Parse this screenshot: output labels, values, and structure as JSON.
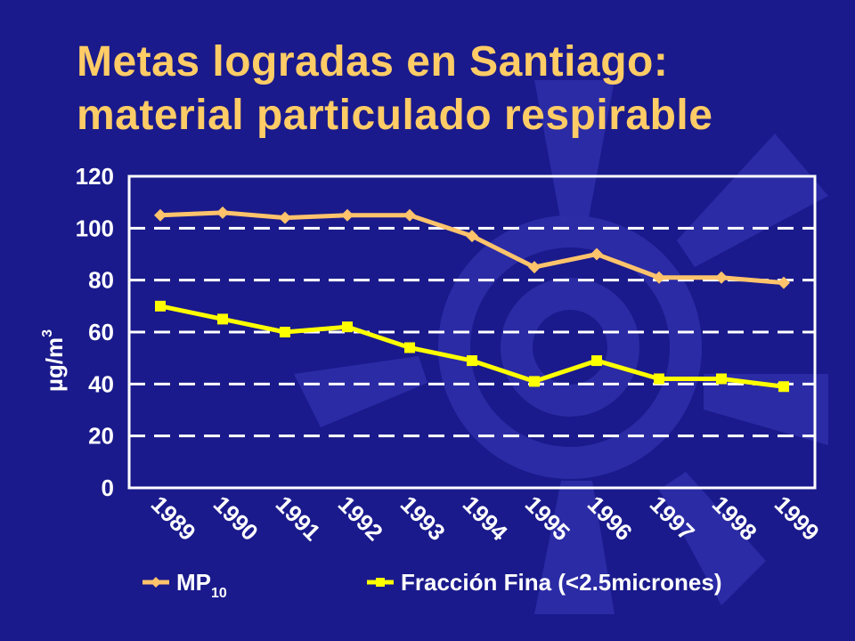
{
  "slide": {
    "title_line1": "Metas logradas en Santiago:",
    "title_line2": "material particulado respirable",
    "colors": {
      "background": "#1a1a8c",
      "title": "#ffcc66",
      "decor": "#2d2da8"
    }
  },
  "chart_data": {
    "type": "line",
    "x": [
      "1989",
      "1990",
      "1991",
      "1992",
      "1993",
      "1994",
      "1995",
      "1996",
      "1997",
      "1998",
      "1999"
    ],
    "ylim": [
      0,
      120
    ],
    "yticks": [
      0,
      20,
      40,
      60,
      80,
      100,
      120
    ],
    "ylabel": {
      "main": "µg/m",
      "sup": "3"
    },
    "grid": "dashed horizontal",
    "legend_placement": "bottom",
    "series": [
      {
        "name": "MP",
        "name_sub": "10",
        "color": "#ffc36b",
        "marker": "diamond",
        "values": [
          105,
          106,
          104,
          105,
          105,
          97,
          85,
          90,
          81,
          81,
          79
        ]
      },
      {
        "name": "Fracción Fina (<2.5micrones)",
        "name_sub": "",
        "color": "#ffff00",
        "marker": "square",
        "values": [
          70,
          65,
          60,
          62,
          54,
          49,
          41,
          49,
          42,
          42,
          39
        ]
      }
    ]
  }
}
